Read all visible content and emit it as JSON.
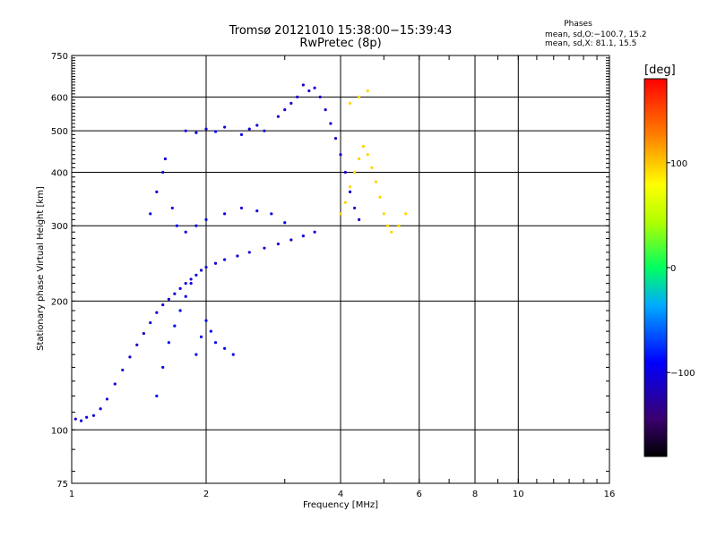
{
  "title_line1": "Tromsø 20121010 15:38:00−15:39:43",
  "title_line2": "RwPretec (8p)",
  "phases": {
    "title": "Phases",
    "line_o": "mean, sd,O:−100.7, 15.2",
    "line_x": "mean, sd,X:  81.1, 15.5"
  },
  "colorbar": {
    "unit": "[deg]",
    "range": [
      -180,
      180
    ],
    "ticks": [
      {
        "value": 100,
        "label": "100"
      },
      {
        "value": 0,
        "label": "0"
      },
      {
        "value": -100,
        "label": "−100"
      }
    ]
  },
  "chart_data": {
    "type": "scatter",
    "xlabel": "Frequency [MHz]",
    "ylabel": "Stationary phase Virtual Height [km]",
    "xscale": "log",
    "yscale": "log",
    "xlim": [
      1,
      16
    ],
    "ylim": [
      75,
      750
    ],
    "xticks": [
      {
        "v": 1,
        "label": "1"
      },
      {
        "v": 2,
        "label": "2"
      },
      {
        "v": 4,
        "label": "4"
      },
      {
        "v": 6,
        "label": "6"
      },
      {
        "v": 8,
        "label": "8"
      },
      {
        "v": 10,
        "label": "10"
      },
      {
        "v": 16,
        "label": "16"
      }
    ],
    "yticks": [
      {
        "v": 75,
        "label": "75"
      },
      {
        "v": 100,
        "label": "100"
      },
      {
        "v": 200,
        "label": "200"
      },
      {
        "v": 300,
        "label": "300"
      },
      {
        "v": 400,
        "label": "400"
      },
      {
        "v": 500,
        "label": "500"
      },
      {
        "v": 600,
        "label": "600"
      },
      {
        "v": 750,
        "label": "750"
      }
    ],
    "grid": true,
    "series": [
      {
        "points": [
          [
            1.02,
            106
          ],
          [
            1.05,
            105
          ],
          [
            1.08,
            107
          ],
          [
            1.12,
            108
          ],
          [
            1.16,
            112
          ],
          [
            1.2,
            118
          ],
          [
            1.25,
            128
          ],
          [
            1.3,
            138
          ],
          [
            1.35,
            148
          ],
          [
            1.4,
            158
          ],
          [
            1.45,
            168
          ],
          [
            1.5,
            178
          ],
          [
            1.55,
            188
          ],
          [
            1.6,
            196
          ],
          [
            1.65,
            202
          ],
          [
            1.7,
            208
          ],
          [
            1.75,
            214
          ],
          [
            1.8,
            220
          ],
          [
            1.85,
            225
          ],
          [
            1.9,
            230
          ],
          [
            1.95,
            236
          ],
          [
            2.0,
            240
          ],
          [
            2.1,
            245
          ],
          [
            2.2,
            250
          ],
          [
            2.35,
            255
          ],
          [
            2.5,
            260
          ],
          [
            2.7,
            266
          ],
          [
            2.9,
            272
          ],
          [
            3.1,
            278
          ],
          [
            3.3,
            284
          ],
          [
            3.5,
            290
          ]
        ],
        "phase": -105
      },
      {
        "points": [
          [
            1.55,
            120
          ],
          [
            1.6,
            140
          ],
          [
            1.65,
            160
          ],
          [
            1.7,
            175
          ],
          [
            1.75,
            190
          ],
          [
            1.8,
            205
          ],
          [
            1.85,
            220
          ],
          [
            1.9,
            150
          ],
          [
            1.95,
            165
          ],
          [
            2.0,
            180
          ],
          [
            2.05,
            170
          ],
          [
            2.1,
            160
          ],
          [
            2.2,
            155
          ],
          [
            2.3,
            150
          ]
        ],
        "phase": -95
      },
      {
        "points": [
          [
            1.5,
            320
          ],
          [
            1.55,
            360
          ],
          [
            1.6,
            400
          ],
          [
            1.62,
            430
          ],
          [
            1.68,
            330
          ],
          [
            1.72,
            300
          ],
          [
            1.8,
            290
          ],
          [
            1.9,
            300
          ],
          [
            2.0,
            310
          ],
          [
            2.2,
            320
          ],
          [
            2.4,
            330
          ],
          [
            2.6,
            325
          ],
          [
            2.8,
            320
          ],
          [
            3.0,
            305
          ]
        ],
        "phase": -100
      },
      {
        "points": [
          [
            1.8,
            500
          ],
          [
            1.9,
            495
          ],
          [
            2.0,
            505
          ],
          [
            2.1,
            498
          ],
          [
            2.2,
            510
          ],
          [
            2.4,
            490
          ],
          [
            2.5,
            505
          ],
          [
            2.6,
            515
          ],
          [
            2.7,
            500
          ]
        ],
        "phase": -102
      },
      {
        "points": [
          [
            2.9,
            540
          ],
          [
            3.0,
            560
          ],
          [
            3.1,
            580
          ],
          [
            3.2,
            600
          ],
          [
            3.3,
            640
          ],
          [
            3.4,
            620
          ],
          [
            3.5,
            630
          ],
          [
            3.6,
            600
          ],
          [
            3.7,
            560
          ],
          [
            3.8,
            520
          ],
          [
            3.9,
            480
          ],
          [
            4.0,
            440
          ],
          [
            4.1,
            400
          ],
          [
            4.2,
            360
          ],
          [
            4.3,
            330
          ],
          [
            4.4,
            310
          ]
        ],
        "phase": -110
      },
      {
        "points": [
          [
            4.0,
            320
          ],
          [
            4.1,
            340
          ],
          [
            4.2,
            370
          ],
          [
            4.3,
            400
          ],
          [
            4.4,
            430
          ],
          [
            4.5,
            460
          ],
          [
            4.6,
            440
          ],
          [
            4.7,
            410
          ],
          [
            4.8,
            380
          ],
          [
            4.9,
            350
          ],
          [
            5.0,
            320
          ],
          [
            5.1,
            300
          ],
          [
            5.2,
            290
          ],
          [
            5.4,
            300
          ],
          [
            5.6,
            320
          ],
          [
            4.2,
            580
          ],
          [
            4.4,
            600
          ],
          [
            4.6,
            620
          ]
        ],
        "phase": 95
      }
    ]
  }
}
